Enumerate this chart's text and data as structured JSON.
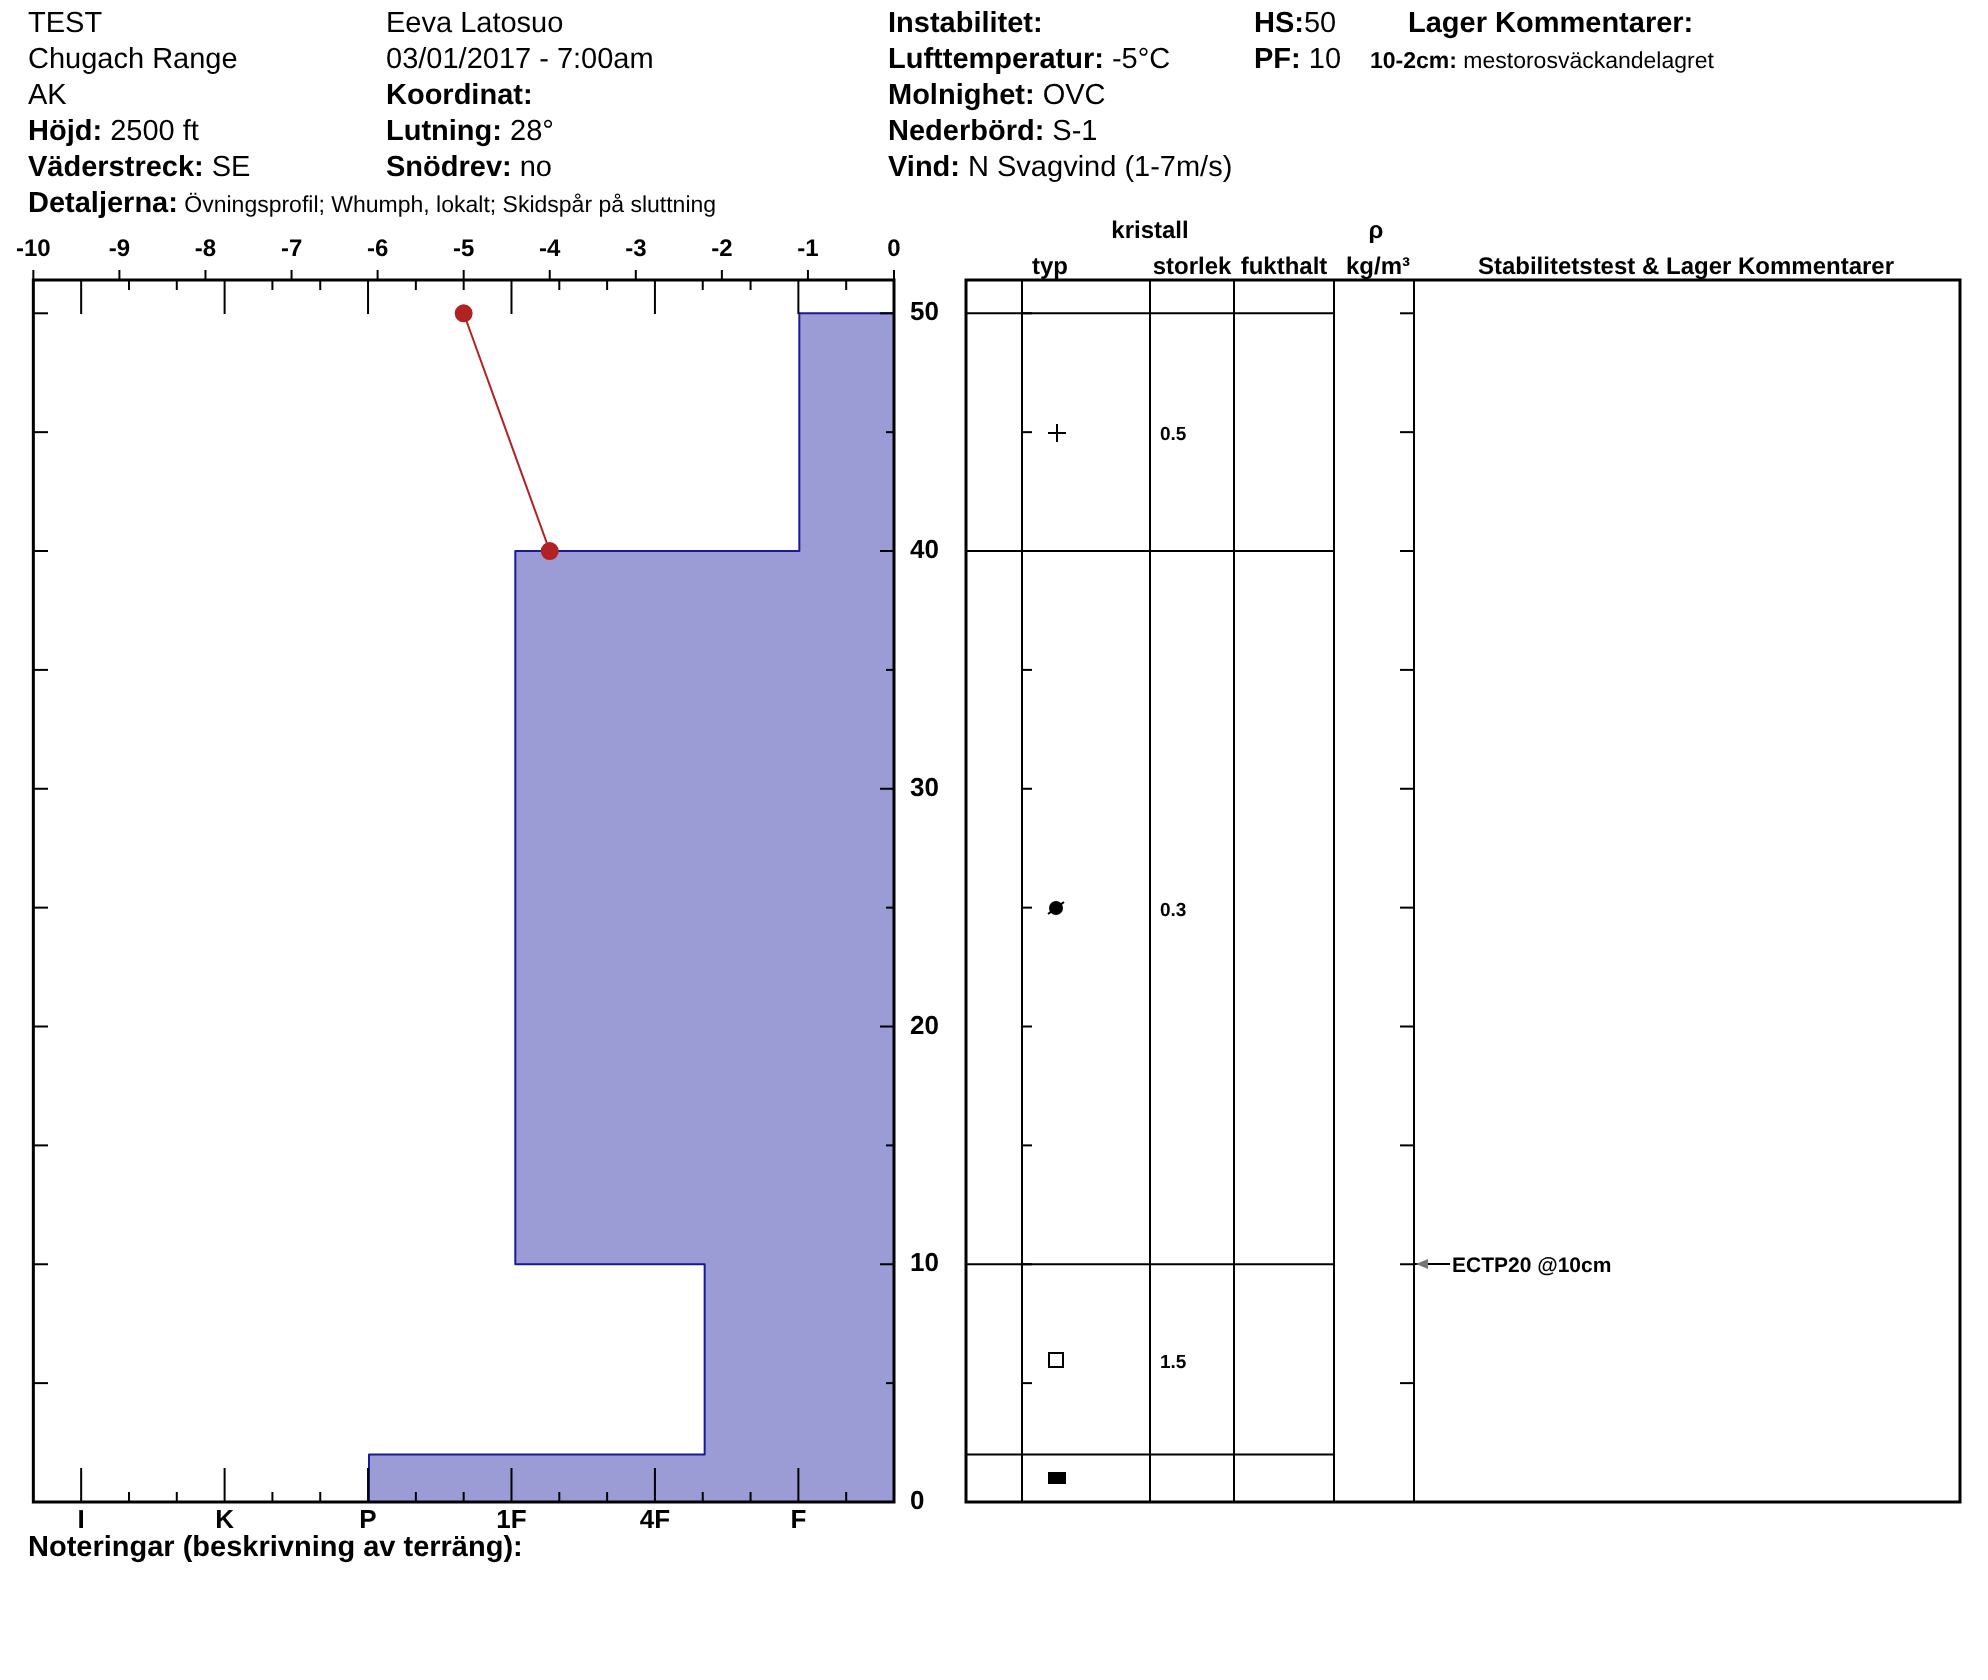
{
  "chart_data": {
    "type": "area",
    "orientation": "horizontal",
    "series": [
      {
        "axis": "x2",
        "x": [
          0,
          2,
          2,
          10,
          10,
          40,
          40,
          50
        ],
        "values": [
          -6.1,
          -6.1,
          -2.2,
          -2.2,
          -4.4,
          -4.4,
          -1.1,
          -1.1
        ],
        "color": "#9b9bd6"
      },
      {
        "type": "line",
        "axis": "x2",
        "x": [
          50,
          40
        ],
        "values": [
          -5,
          -4
        ],
        "color": "#b22222",
        "marker": "circle"
      }
    ],
    "x2lim": [
      -10,
      0
    ],
    "x2ticks": [
      -10,
      -9,
      -8,
      -7,
      -6,
      -5,
      -4,
      -3,
      -2,
      -1,
      0
    ],
    "ylim": [
      0,
      51.4
    ],
    "yticks": [
      0,
      {
        "value": 5,
        "label": null
      },
      10,
      {
        "value": 15,
        "label": null
      },
      20,
      {
        "value": 25,
        "label": null
      },
      30,
      {
        "value": 35,
        "label": null
      },
      40,
      {
        "value": 45,
        "label": null
      },
      50
    ],
    "annotations": [
      "TEST",
      "Chugach Range",
      "AK",
      "Höjd: 2500 ft",
      "Väderstreck: SE",
      "Detaljerna: Övningsprofil; Whumph, lokalt; Skidspår på sluttning",
      "Eeva Latosuo",
      "03/01/2017 - 7:00am",
      "Koordinat:",
      "Lutning: 28°",
      "Snödrev: no",
      "Instabilitet:",
      "Lufttemperatur: -5°C",
      "Molnighet: OVC",
      "Nederbörd: S-1",
      "Vind: N Svagvind (1-7m/s)",
      "HS:50",
      "PF: 10",
      "Lager Kommentarer:",
      "10-2cm: mestorosväckandelagret",
      "kristall",
      "typ",
      "storlek",
      "fukthalt",
      "ρ",
      "kg/m³",
      "Stabilitetstest & Lager Kommentarer",
      "0.5",
      "0.3",
      "1.5",
      "ECTP20 @10cm",
      "I",
      "K",
      "P",
      "1F",
      "4F",
      "F",
      "Noteringar (beskrivning av terräng):"
    ]
  }
}
